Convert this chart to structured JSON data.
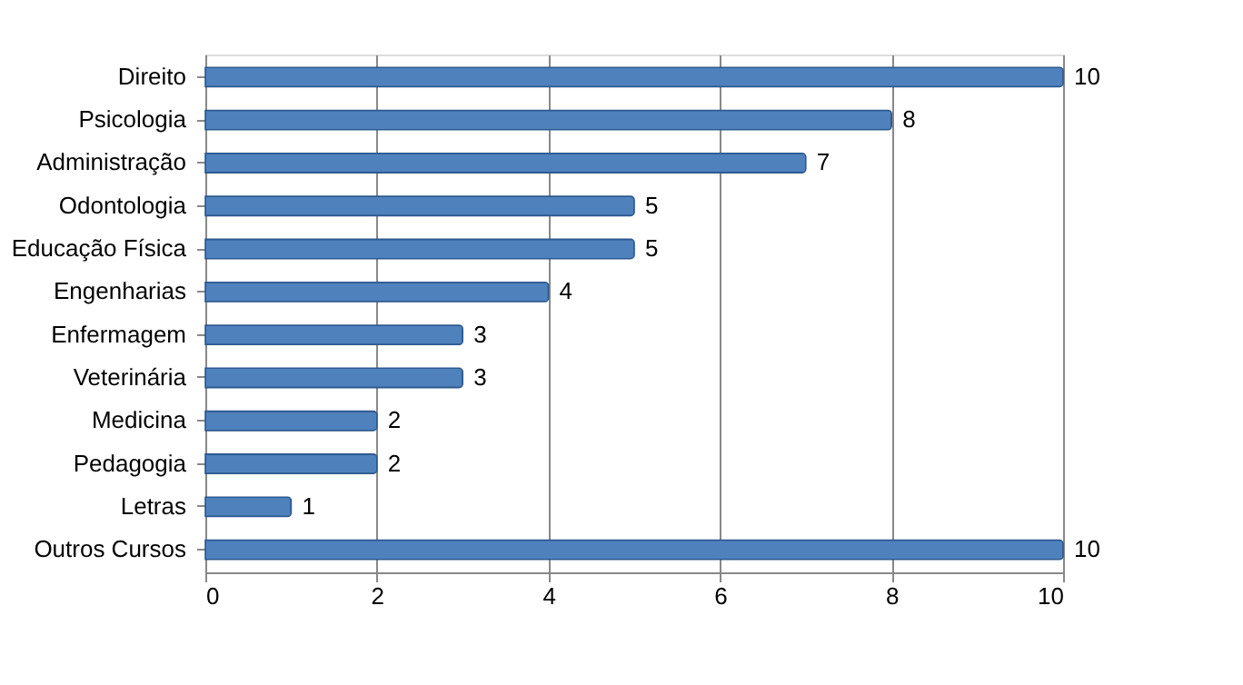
{
  "chart_data": {
    "type": "bar",
    "orientation": "horizontal",
    "categories": [
      "Direito",
      "Psicologia",
      "Administração",
      "Odontologia",
      "Educação Física",
      "Engenharias",
      "Enfermagem",
      "Veterinária",
      "Medicina",
      "Pedagogia",
      "Letras",
      "Outros Cursos"
    ],
    "values": [
      10,
      8,
      7,
      5,
      5,
      4,
      3,
      3,
      2,
      2,
      1,
      10
    ],
    "color": "#4f81bd",
    "xlim": [
      0,
      10
    ],
    "xticks": [
      0,
      2,
      4,
      6,
      8,
      10
    ],
    "grid": "x",
    "data_labels": true
  }
}
